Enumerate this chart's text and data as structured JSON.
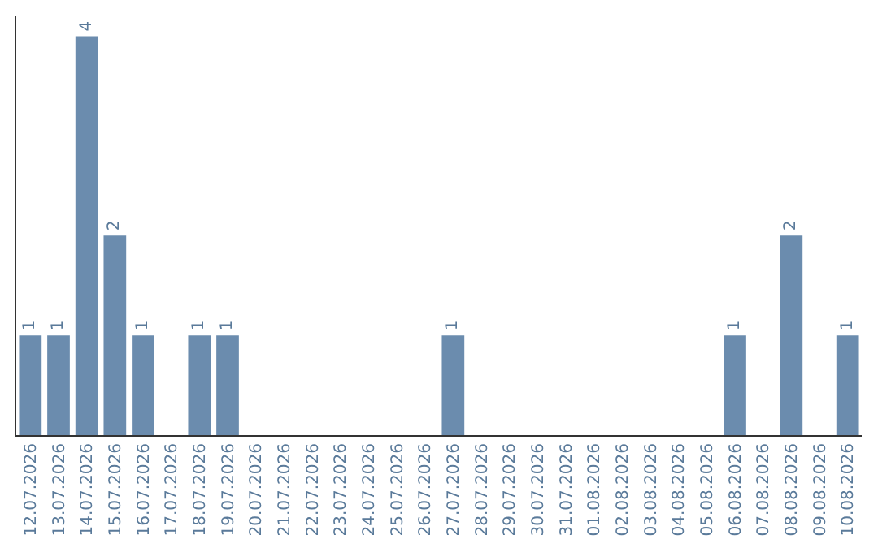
{
  "chart_data": {
    "type": "bar",
    "categories": [
      "12.07.2026",
      "13.07.2026",
      "14.07.2026",
      "15.07.2026",
      "16.07.2026",
      "17.07.2026",
      "18.07.2026",
      "19.07.2026",
      "20.07.2026",
      "21.07.2026",
      "22.07.2026",
      "23.07.2026",
      "24.07.2026",
      "25.07.2026",
      "26.07.2026",
      "27.07.2026",
      "28.07.2026",
      "29.07.2026",
      "30.07.2026",
      "31.07.2026",
      "01.08.2026",
      "02.08.2026",
      "03.08.2026",
      "04.08.2026",
      "05.08.2026",
      "06.08.2026",
      "07.08.2026",
      "08.08.2026",
      "09.08.2026",
      "10.08.2026"
    ],
    "values": [
      1,
      1,
      4,
      2,
      1,
      0,
      1,
      1,
      0,
      0,
      0,
      0,
      0,
      0,
      0,
      1,
      0,
      0,
      0,
      0,
      0,
      0,
      0,
      0,
      0,
      1,
      0,
      2,
      0,
      1
    ],
    "value_labels": [
      "1",
      "1",
      "4",
      "2",
      "1",
      null,
      "1",
      "1",
      null,
      null,
      null,
      null,
      null,
      null,
      null,
      "1",
      null,
      null,
      null,
      null,
      null,
      null,
      null,
      null,
      null,
      "1",
      null,
      "2",
      null,
      "1"
    ],
    "color": "#6b8cae",
    "ylim": [
      0,
      4.2
    ],
    "tick_labels": "x"
  }
}
